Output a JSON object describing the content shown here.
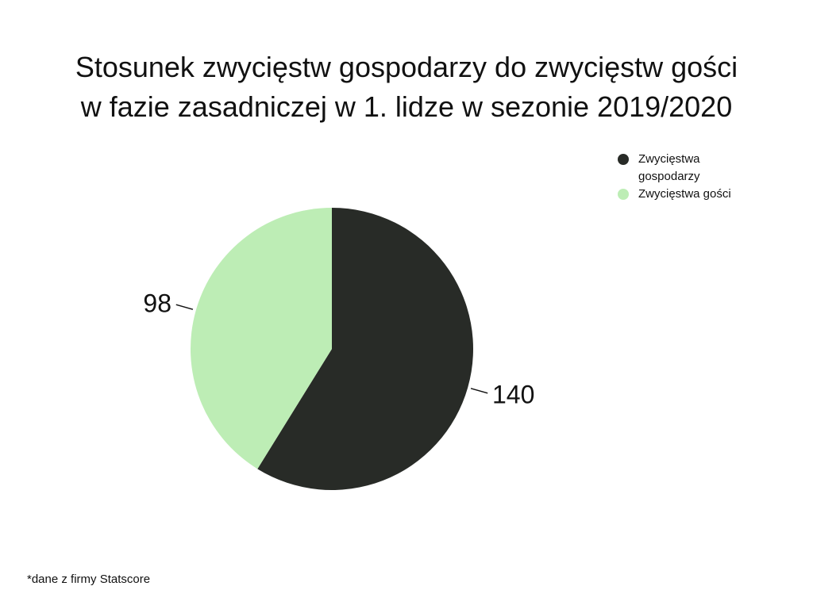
{
  "title_line1": "Stosunek zwycięstw gospodarzy do zwycięstw gości",
  "title_line2": "w fazie zasadniczej w 1. lidze w sezonie 2019/2020",
  "footnote": "*dane z firmy Statscore",
  "chart_data": {
    "type": "pie",
    "title": "Stosunek zwycięstw gospodarzy do zwycięstw gości w fazie zasadniczej w 1. lidze w sezonie 2019/2020",
    "legend_position": "top-right",
    "series": [
      {
        "name": "Zwycięstwa gospodarzy",
        "value": 140,
        "color": "#282b27"
      },
      {
        "name": "Zwycięstwa gości",
        "value": 98,
        "color": "#bdedb5"
      }
    ]
  }
}
